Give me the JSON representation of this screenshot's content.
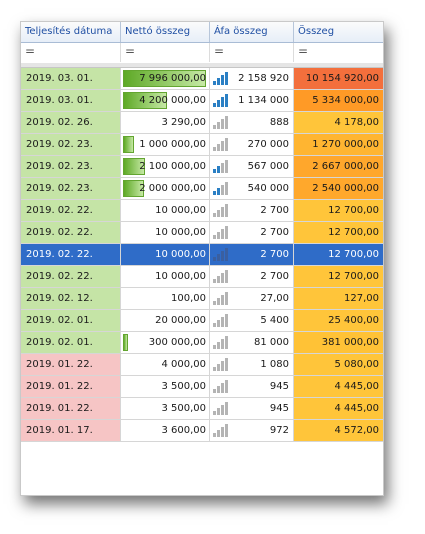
{
  "columns": {
    "date": "Teljesítés dátuma",
    "net": "Nettó összeg",
    "vat": "Áfa összeg",
    "total": "Összeg"
  },
  "filter_symbol": "=",
  "colors": {
    "date_recent": "#c5e4a6",
    "date_old": "#f6c5c5",
    "selection": "#2f6cc8",
    "icon_active": "#2a7fc4",
    "icon_inactive": "#b4b4b4"
  },
  "rows": [
    {
      "date": "2019. 03. 01.",
      "net": "7 996 000,00",
      "vat": "2 158 920",
      "total": "10 154 920,00",
      "net_ratio": 1.0,
      "vat_level": 4,
      "total_color": "#f36f3c",
      "date_color": "#c5e4a6",
      "selected": false
    },
    {
      "date": "2019. 03. 01.",
      "net": "4 200 000,00",
      "vat": "1 134 000",
      "total": "5 334 000,00",
      "net_ratio": 0.53,
      "vat_level": 4,
      "total_color": "#ff9a26",
      "date_color": "#c5e4a6",
      "selected": false
    },
    {
      "date": "2019. 02. 26.",
      "net": "3 290,00",
      "vat": "888",
      "total": "4 178,00",
      "net_ratio": 0,
      "vat_level": 0,
      "total_color": "#ffc53a",
      "date_color": "#c5e4a6",
      "selected": false
    },
    {
      "date": "2019. 02. 23.",
      "net": "1 000 000,00",
      "vat": "270 000",
      "total": "1 270 000,00",
      "net_ratio": 0.13,
      "vat_level": 0,
      "total_color": "#ffb531",
      "date_color": "#c5e4a6",
      "selected": false
    },
    {
      "date": "2019. 02. 23.",
      "net": "2 100 000,00",
      "vat": "567 000",
      "total": "2 667 000,00",
      "net_ratio": 0.26,
      "vat_level": 2,
      "total_color": "#ffa72c",
      "date_color": "#c5e4a6",
      "selected": false
    },
    {
      "date": "2019. 02. 23.",
      "net": "2 000 000,00",
      "vat": "540 000",
      "total": "2 540 000,00",
      "net_ratio": 0.25,
      "vat_level": 2,
      "total_color": "#ffa82c",
      "date_color": "#c5e4a6",
      "selected": false
    },
    {
      "date": "2019. 02. 22.",
      "net": "10 000,00",
      "vat": "2 700",
      "total": "12 700,00",
      "net_ratio": 0,
      "vat_level": 0,
      "total_color": "#ffc53a",
      "date_color": "#c5e4a6",
      "selected": false
    },
    {
      "date": "2019. 02. 22.",
      "net": "10 000,00",
      "vat": "2 700",
      "total": "12 700,00",
      "net_ratio": 0,
      "vat_level": 0,
      "total_color": "#ffc53a",
      "date_color": "#c5e4a6",
      "selected": false
    },
    {
      "date": "2019. 02. 22.",
      "net": "10 000,00",
      "vat": "2 700",
      "total": "12 700,00",
      "net_ratio": 0,
      "vat_level": 0,
      "total_color": "#ffc53a",
      "date_color": "#c5e4a6",
      "selected": true
    },
    {
      "date": "2019. 02. 22.",
      "net": "10 000,00",
      "vat": "2 700",
      "total": "12 700,00",
      "net_ratio": 0,
      "vat_level": 0,
      "total_color": "#ffc53a",
      "date_color": "#c5e4a6",
      "selected": false
    },
    {
      "date": "2019. 02. 12.",
      "net": "100,00",
      "vat": "27,00",
      "total": "127,00",
      "net_ratio": 0,
      "vat_level": 0,
      "total_color": "#ffc53a",
      "date_color": "#c5e4a6",
      "selected": false
    },
    {
      "date": "2019. 02. 01.",
      "net": "20 000,00",
      "vat": "5 400",
      "total": "25 400,00",
      "net_ratio": 0,
      "vat_level": 0,
      "total_color": "#ffc53a",
      "date_color": "#c5e4a6",
      "selected": false
    },
    {
      "date": "2019. 02. 01.",
      "net": "300 000,00",
      "vat": "81 000",
      "total": "381 000,00",
      "net_ratio": 0.04,
      "vat_level": 0,
      "total_color": "#ffc236",
      "date_color": "#c5e4a6",
      "selected": false
    },
    {
      "date": "2019. 01. 22.",
      "net": "4 000,00",
      "vat": "1 080",
      "total": "5 080,00",
      "net_ratio": 0,
      "vat_level": 0,
      "total_color": "#ffc53a",
      "date_color": "#f6c5c5",
      "selected": false
    },
    {
      "date": "2019. 01. 22.",
      "net": "3 500,00",
      "vat": "945",
      "total": "4 445,00",
      "net_ratio": 0,
      "vat_level": 0,
      "total_color": "#ffc53a",
      "date_color": "#f6c5c5",
      "selected": false
    },
    {
      "date": "2019. 01. 22.",
      "net": "3 500,00",
      "vat": "945",
      "total": "4 445,00",
      "net_ratio": 0,
      "vat_level": 0,
      "total_color": "#ffc53a",
      "date_color": "#f6c5c5",
      "selected": false
    },
    {
      "date": "2019. 01. 17.",
      "net": "3 600,00",
      "vat": "972",
      "total": "4 572,00",
      "net_ratio": 0,
      "vat_level": 0,
      "total_color": "#ffc53a",
      "date_color": "#f6c5c5",
      "selected": false
    }
  ]
}
